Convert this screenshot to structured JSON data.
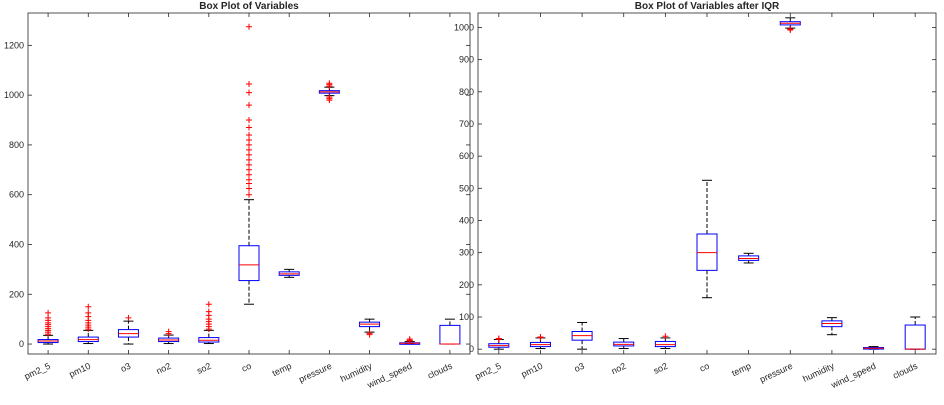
{
  "chart_data": [
    {
      "type": "box",
      "title": "Box Plot of Variables",
      "xlabel": "",
      "ylabel": "",
      "ylim": [
        -40,
        1330
      ],
      "yticks": [
        0,
        200,
        400,
        600,
        800,
        1000,
        1200
      ],
      "grid": false,
      "box_color": "#0000ff",
      "median_color": "#ff0000",
      "whisker_color": "#000000",
      "outlier_color": "#ff0000",
      "categories": [
        "pm2_5",
        "pm10",
        "o3",
        "no2",
        "so2",
        "co",
        "temp",
        "pressure",
        "humidity",
        "wind_speed",
        "clouds"
      ],
      "boxes": [
        {
          "q1": 6,
          "median": 12,
          "q3": 18,
          "whisker_low": 0,
          "whisker_high": 35,
          "outliers": [
            40,
            48,
            55,
            62,
            70,
            78,
            85,
            95,
            105,
            125
          ]
        },
        {
          "q1": 10,
          "median": 18,
          "q3": 28,
          "whisker_low": 2,
          "whisker_high": 55,
          "outliers": [
            60,
            68,
            76,
            85,
            95,
            110,
            125,
            150
          ]
        },
        {
          "q1": 28,
          "median": 42,
          "q3": 58,
          "whisker_low": 0,
          "whisker_high": 92,
          "outliers": [
            105
          ]
        },
        {
          "q1": 10,
          "median": 16,
          "q3": 24,
          "whisker_low": 2,
          "whisker_high": 36,
          "outliers": [
            42,
            50
          ]
        },
        {
          "q1": 8,
          "median": 15,
          "q3": 26,
          "whisker_low": 2,
          "whisker_high": 55,
          "outliers": [
            60,
            70,
            80,
            90,
            100,
            115,
            130,
            160
          ]
        },
        {
          "q1": 255,
          "median": 318,
          "q3": 395,
          "whisker_low": 160,
          "whisker_high": 580,
          "outliers": [
            600,
            625,
            645,
            660,
            680,
            700,
            720,
            740,
            760,
            780,
            800,
            820,
            840,
            870,
            900,
            960,
            1010,
            1045,
            1275
          ]
        },
        {
          "q1": 276,
          "median": 282,
          "q3": 290,
          "whisker_low": 268,
          "whisker_high": 300,
          "outliers": []
        },
        {
          "q1": 1008,
          "median": 1013,
          "q3": 1018,
          "whisker_low": 998,
          "whisker_high": 1032,
          "outliers": [
            980,
            986,
            992,
            1036,
            1042,
            1048
          ]
        },
        {
          "q1": 70,
          "median": 80,
          "q3": 88,
          "whisker_low": 48,
          "whisker_high": 100,
          "outliers": [
            38,
            43
          ]
        },
        {
          "q1": 1,
          "median": 3,
          "q3": 5,
          "whisker_low": 0,
          "whisker_high": 10,
          "outliers": [
            12,
            15,
            20
          ]
        },
        {
          "q1": 0,
          "median": 0,
          "q3": 75,
          "whisker_low": 0,
          "whisker_high": 100,
          "outliers": []
        }
      ]
    },
    {
      "type": "box",
      "title": "Box Plot of Variables after IQR",
      "xlabel": "",
      "ylabel": "",
      "ylim": [
        -15,
        1045
      ],
      "yticks": [
        0,
        100,
        200,
        300,
        400,
        500,
        600,
        700,
        800,
        900,
        1000
      ],
      "grid": false,
      "box_color": "#0000ff",
      "median_color": "#ff0000",
      "whisker_color": "#000000",
      "outlier_color": "#ff0000",
      "categories": [
        "pm2_5",
        "pm10",
        "o3",
        "no2",
        "so2",
        "co",
        "temp",
        "pressure",
        "humidity",
        "wind_speed",
        "clouds"
      ],
      "boxes": [
        {
          "q1": 6,
          "median": 11,
          "q3": 17,
          "whisker_low": 0,
          "whisker_high": 30,
          "outliers": [
            31,
            33
          ]
        },
        {
          "q1": 8,
          "median": 14,
          "q3": 21,
          "whisker_low": 2,
          "whisker_high": 35,
          "outliers": [
            36,
            38
          ]
        },
        {
          "q1": 28,
          "median": 42,
          "q3": 55,
          "whisker_low": 0,
          "whisker_high": 83,
          "outliers": []
        },
        {
          "q1": 10,
          "median": 15,
          "q3": 22,
          "whisker_low": 2,
          "whisker_high": 33,
          "outliers": []
        },
        {
          "q1": 8,
          "median": 14,
          "q3": 24,
          "whisker_low": 2,
          "whisker_high": 35,
          "outliers": [
            40
          ]
        },
        {
          "q1": 245,
          "median": 300,
          "q3": 358,
          "whisker_low": 160,
          "whisker_high": 525,
          "outliers": []
        },
        {
          "q1": 276,
          "median": 282,
          "q3": 290,
          "whisker_low": 268,
          "whisker_high": 298,
          "outliers": []
        },
        {
          "q1": 1008,
          "median": 1013,
          "q3": 1018,
          "whisker_low": 998,
          "whisker_high": 1030,
          "outliers": [
            992,
            995
          ]
        },
        {
          "q1": 70,
          "median": 80,
          "q3": 88,
          "whisker_low": 45,
          "whisker_high": 98,
          "outliers": []
        },
        {
          "q1": 1,
          "median": 3,
          "q3": 5,
          "whisker_low": 0,
          "whisker_high": 8,
          "outliers": []
        },
        {
          "q1": 0,
          "median": 0,
          "q3": 75,
          "whisker_low": 0,
          "whisker_high": 100,
          "outliers": []
        }
      ]
    }
  ]
}
